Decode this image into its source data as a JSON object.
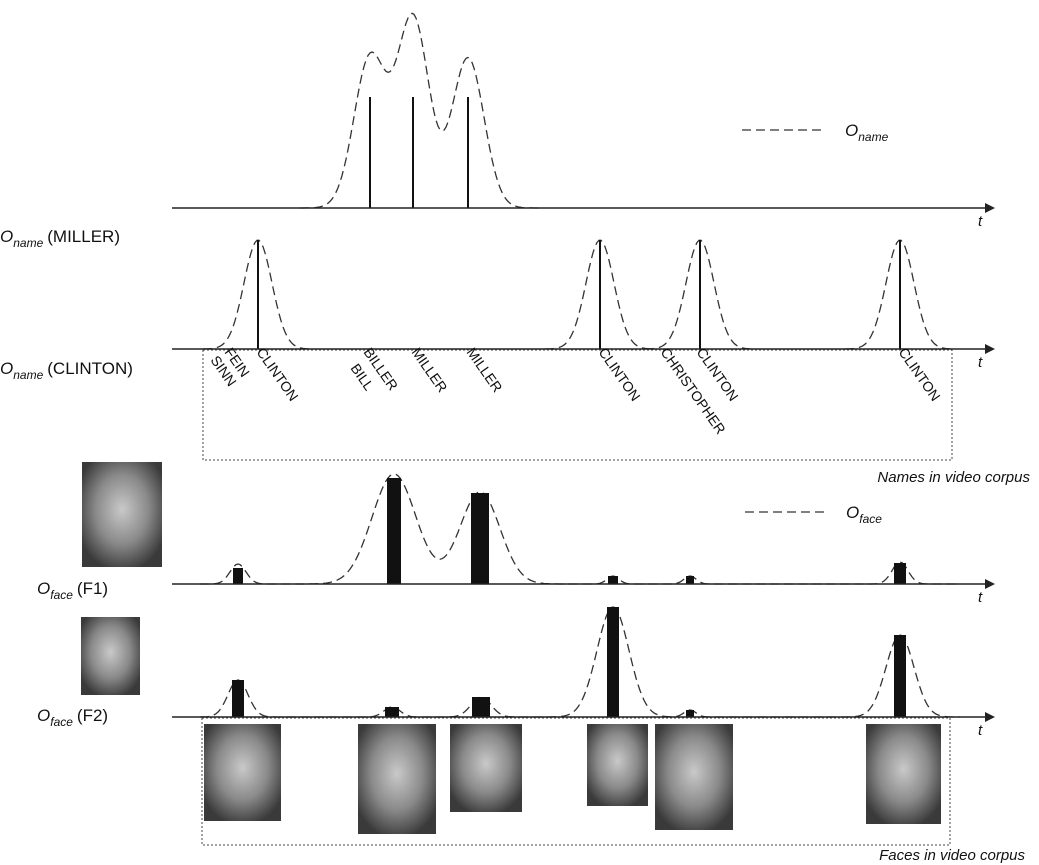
{
  "legend": {
    "name": {
      "symbol": "O",
      "subscript": "name"
    },
    "face": {
      "symbol": "O",
      "subscript": "face"
    }
  },
  "axis_label": "t",
  "row_labels": [
    {
      "symbol": "O",
      "subscript": "name",
      "argument": "(MILLER)"
    },
    {
      "symbol": "O",
      "subscript": "name",
      "argument": "(CLINTON)"
    },
    {
      "symbol": "O",
      "subscript": "face",
      "argument": "(F1)"
    },
    {
      "symbol": "O",
      "subscript": "face",
      "argument": "(F2)"
    }
  ],
  "name_labels": [
    "SINN",
    "FEIN",
    "CLINTON",
    "BILL",
    "BILLER",
    "MILLER",
    "MILLER",
    "CLINTON",
    "CHRISTOPHER",
    "CLINTON",
    "CLINTON"
  ],
  "captions": {
    "names": "Names in video corpus",
    "faces": "Faces in video corpus"
  }
}
